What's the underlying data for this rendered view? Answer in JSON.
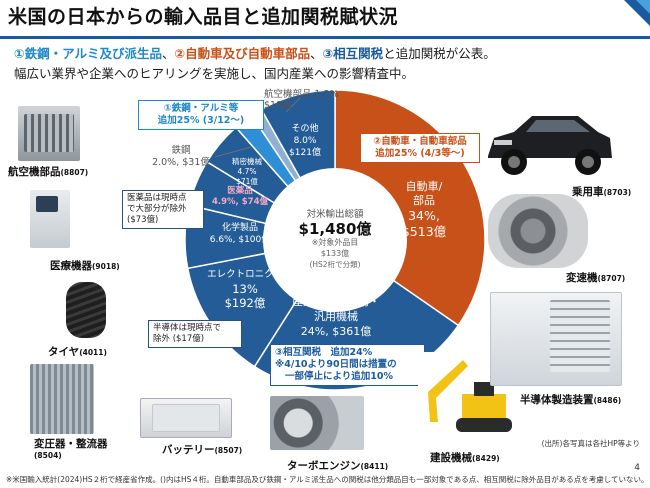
{
  "title": "米国の日本からの輸入品目と追加関税賦状況",
  "subtitle": {
    "part1": "①鉄鋼・アルミ及び派生品",
    "sep1": "、",
    "part2": "②自動車及び自動車部品",
    "sep2": "、",
    "part3": "③相互関税",
    "tail": "と追加関税が公表。",
    "line2": "幅広い業界や企業へのヒアリングを実施し、国内産業への影響精査中。"
  },
  "colors": {
    "auto": "#c8511a",
    "main": "#235c96",
    "steel": "#2e8fd6",
    "aircraft": "#8fb0d0",
    "accent": "#1e88c9"
  },
  "center": {
    "label": "対米輸出総額",
    "value": "$1,480億",
    "note1": "※対象外品目",
    "note2": "$133億",
    "note3": "(HS2桁で分類)"
  },
  "callouts": {
    "steel_line1": "①鉄鋼・アルミ等",
    "steel_line2": "追加25% (3/12～)",
    "auto_line1": "②自動車・自動車部品",
    "auto_line2": "追加25% (4/3等～)",
    "recip_line1": "③相互関税　追加24%",
    "recip_line2": "※4/10より90日間は措置の",
    "recip_line3": "一部停止により追加10%",
    "pharma_line1": "医薬品は現時点",
    "pharma_line2": "で大部分が除外",
    "pharma_line3": "($73億)",
    "semi_line1": "半導体は現時点で",
    "semi_line2": "除外 ($17億)"
  },
  "products": {
    "aircraft_parts": {
      "label": "航空機部品",
      "code": "(8807)"
    },
    "medical": {
      "label": "医療機器",
      "code": "(9018)"
    },
    "tire": {
      "label": "タイヤ",
      "code": "(4011)"
    },
    "transformer": {
      "label": "変圧器・整流器",
      "code": "(8504)"
    },
    "battery": {
      "label": "バッテリー",
      "code": "(8507)"
    },
    "turbine": {
      "label": "ターボエンジン",
      "code": "(8411)"
    },
    "construction": {
      "label": "建設機械",
      "code": "(8429)"
    },
    "semi_equipment": {
      "label": "半導体製造装置",
      "code": "(8486)"
    },
    "gearbox": {
      "label": "変速機",
      "code": "(8707)"
    },
    "car": {
      "label": "乗用車",
      "code": "(8703)"
    }
  },
  "chart_data": {
    "type": "pie",
    "title": "対米輸出総額 $1,480億",
    "unit": "億ドル",
    "slices": [
      {
        "name": "自動車/部品",
        "line1": "自動車/",
        "line2": "部品",
        "pct": "34%,",
        "amt": "$513億",
        "value": 513,
        "color": "#c8511a"
      },
      {
        "name": "産業用・業務用・汎用機械",
        "line1": "産業用・業務用・",
        "line2": "汎用機械",
        "pct": "24%,",
        "amt": "$361億",
        "value": 361,
        "color": "#235c96"
      },
      {
        "name": "エレクトロニクス",
        "line1": "エレクトロニクス",
        "line2": "13%",
        "pct": "",
        "amt": "$192億",
        "value": 192,
        "color": "#235c96"
      },
      {
        "name": "化学製品",
        "line1": "化学製品",
        "line2": "",
        "pct": "6.6%,",
        "amt": "$100億",
        "value": 100,
        "color": "#235c96"
      },
      {
        "name": "医薬品",
        "line1": "医薬品",
        "line2": "",
        "pct": "4.9%,",
        "amt": "$74億",
        "value": 74,
        "color": "#235c96"
      },
      {
        "name": "精密機械",
        "line1": "精密機械",
        "line2": "",
        "pct": "4.7%",
        "amt": "$71億",
        "value": 71,
        "color": "#235c96"
      },
      {
        "name": "鉄鋼",
        "line1": "鉄鋼",
        "line2": "",
        "pct": "2.0%,",
        "amt": "$31億",
        "value": 31,
        "color": "#2e8fd6"
      },
      {
        "name": "航空機部品",
        "line1": "航空機部品",
        "line2": "",
        "pct": "1.2%",
        "amt": "$18億",
        "value": 18,
        "color": "#8fb0d0"
      },
      {
        "name": "その他",
        "line1": "その他",
        "line2": "",
        "pct": "8.0%",
        "amt": "$121億",
        "value": 121,
        "color": "#235c96"
      }
    ]
  },
  "footnote": "※米国輸入統計(2024)HS２桁で経産省作成。()内はHS４桁。自動車部品及び鉄鋼・アルミ派生品への関税は他分類品目も一部対象である点、相互関税に除外品目がある点を考慮していない。",
  "source": "(出所)各写真は各社HP等より",
  "page_number": "4"
}
